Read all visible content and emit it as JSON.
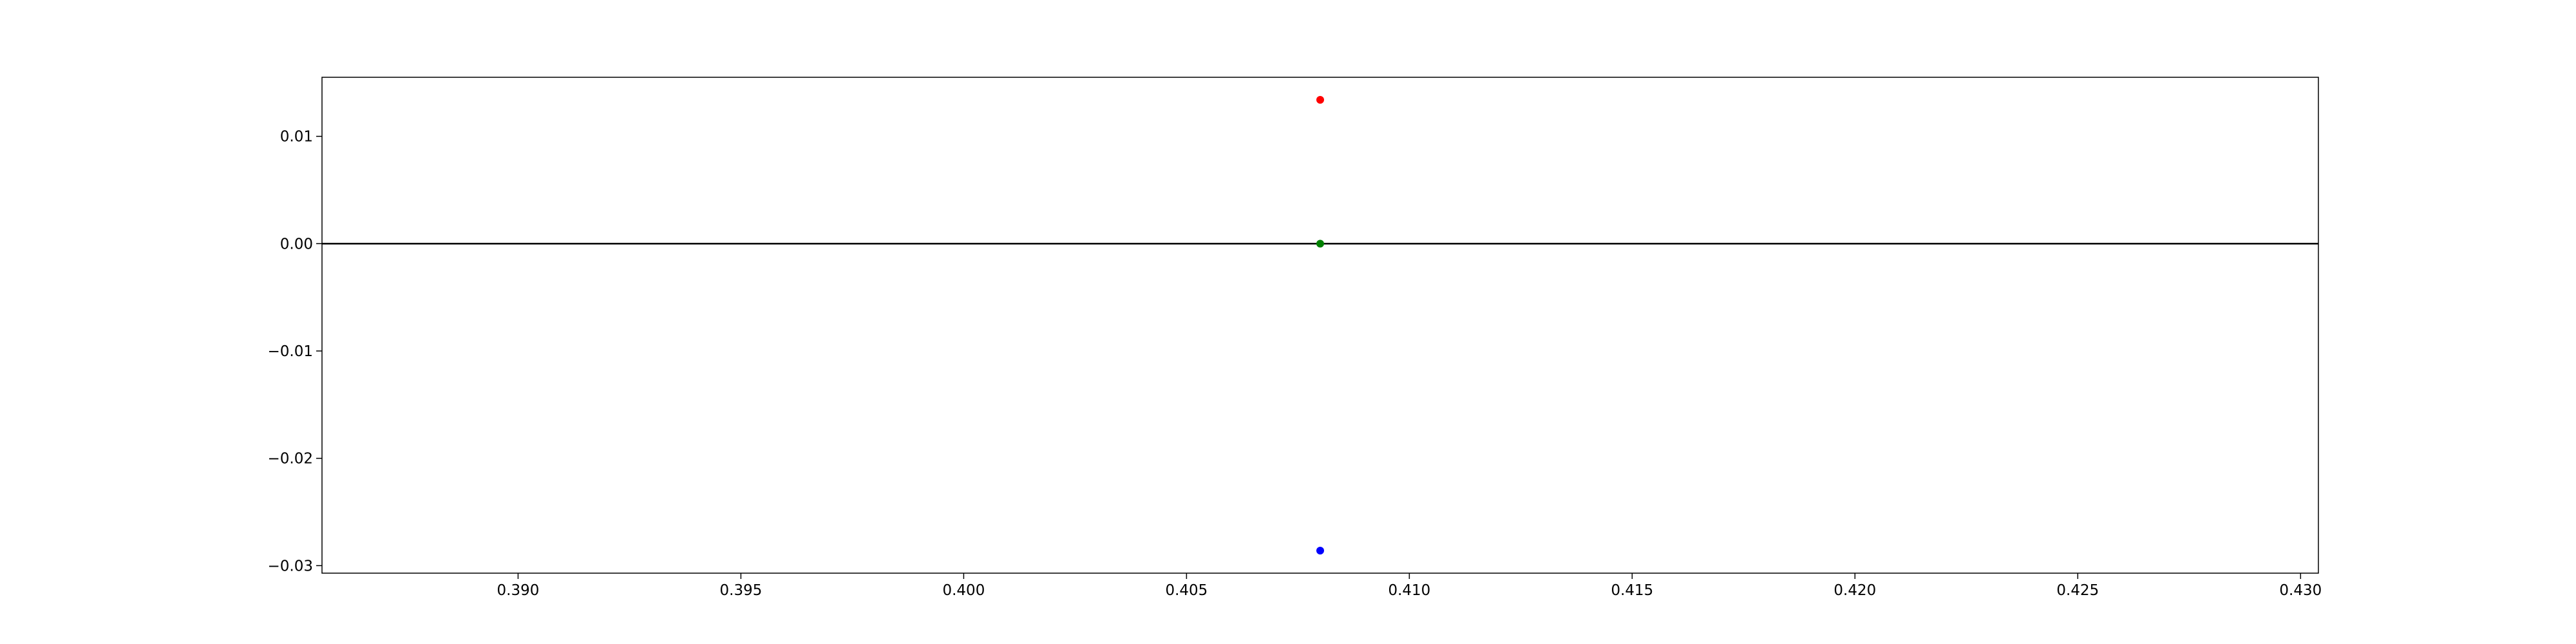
{
  "chart_data": {
    "type": "scatter",
    "title": "",
    "xlabel": "",
    "ylabel": "",
    "xlim": [
      0.3856,
      0.4304
    ],
    "ylim": [
      -0.0307,
      0.0155
    ],
    "grid": false,
    "xticks": [
      0.39,
      0.395,
      0.4,
      0.405,
      0.41,
      0.415,
      0.42,
      0.425,
      0.43
    ],
    "xtick_labels": [
      "0.390",
      "0.395",
      "0.400",
      "0.405",
      "0.410",
      "0.415",
      "0.420",
      "0.425",
      "0.430"
    ],
    "yticks": [
      0.01,
      0.0,
      -0.01,
      -0.02,
      -0.03
    ],
    "ytick_labels": [
      "0.01",
      "0.00",
      "−0.01",
      "−0.02",
      "−0.03"
    ],
    "hline": {
      "y": 0.0,
      "color": "#000000"
    },
    "points": [
      {
        "x": 0.408,
        "y": 0.0134,
        "color": "#ff0000"
      },
      {
        "x": 0.408,
        "y": 0.0,
        "color": "#008000"
      },
      {
        "x": 0.408,
        "y": -0.0286,
        "color": "#0000ff"
      }
    ]
  }
}
